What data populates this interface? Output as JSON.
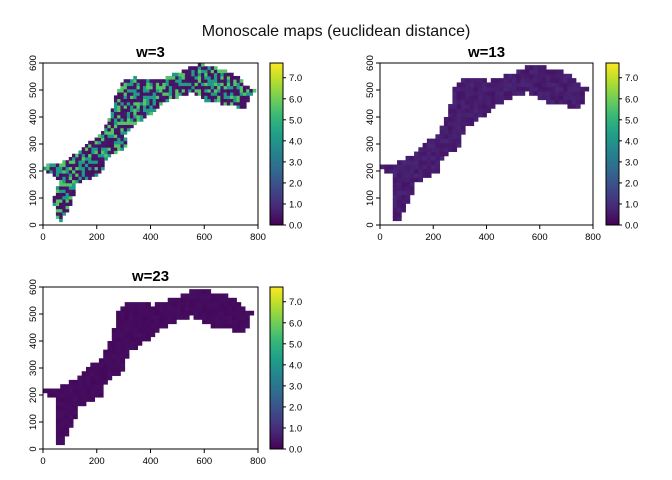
{
  "figure": {
    "title": "Monoscale maps (euclidean distance)"
  },
  "chart_data": [
    {
      "type": "heatmap",
      "title": "w=3",
      "x_ticks": [
        0,
        200,
        400,
        600,
        800
      ],
      "y_ticks": [
        0,
        100,
        200,
        300,
        400,
        500,
        600
      ],
      "xlim": [
        0,
        800
      ],
      "ylim": [
        0,
        600
      ],
      "legend_ticks": [
        "0.0",
        "1.0",
        "2.0",
        "3.0",
        "4.0",
        "5.0",
        "6.0",
        "7.0"
      ],
      "value_range": [
        0,
        7.7
      ],
      "typical_values": [
        0.3,
        4.2,
        5.6
      ],
      "palette": [
        "#440154",
        "#482878",
        "#3e4989",
        "#31688e",
        "#26828e",
        "#1f9e89",
        "#35b779",
        "#6ece58",
        "#b5de2b",
        "#fde725"
      ]
    },
    {
      "type": "heatmap",
      "title": "w=13",
      "x_ticks": [
        0,
        200,
        400,
        600,
        800
      ],
      "y_ticks": [
        0,
        100,
        200,
        300,
        400,
        500,
        600
      ],
      "xlim": [
        0,
        800
      ],
      "ylim": [
        0,
        600
      ],
      "legend_ticks": [
        "0.0",
        "1.0",
        "2.0",
        "3.0",
        "4.0",
        "5.0",
        "6.0",
        "7.0"
      ],
      "value_range": [
        0,
        7.7
      ],
      "typical_values": [
        0.4,
        0.8
      ],
      "palette": [
        "#440154",
        "#482878",
        "#3e4989",
        "#31688e",
        "#26828e",
        "#1f9e89",
        "#35b779",
        "#6ece58",
        "#b5de2b",
        "#fde725"
      ]
    },
    {
      "type": "heatmap",
      "title": "w=23",
      "x_ticks": [
        0,
        200,
        400,
        600,
        800
      ],
      "y_ticks": [
        0,
        100,
        200,
        300,
        400,
        500,
        600
      ],
      "xlim": [
        0,
        800
      ],
      "ylim": [
        0,
        600
      ],
      "legend_ticks": [
        "0.0",
        "1.0",
        "2.0",
        "3.0",
        "4.0",
        "5.0",
        "6.0",
        "7.0"
      ],
      "value_range": [
        0,
        7.7
      ],
      "typical_values": [
        0.15,
        0.3
      ],
      "palette": [
        "#440154",
        "#482878",
        "#3e4989",
        "#31688e",
        "#26828e",
        "#1f9e89",
        "#35b779",
        "#6ece58",
        "#b5de2b",
        "#fde725"
      ]
    }
  ]
}
